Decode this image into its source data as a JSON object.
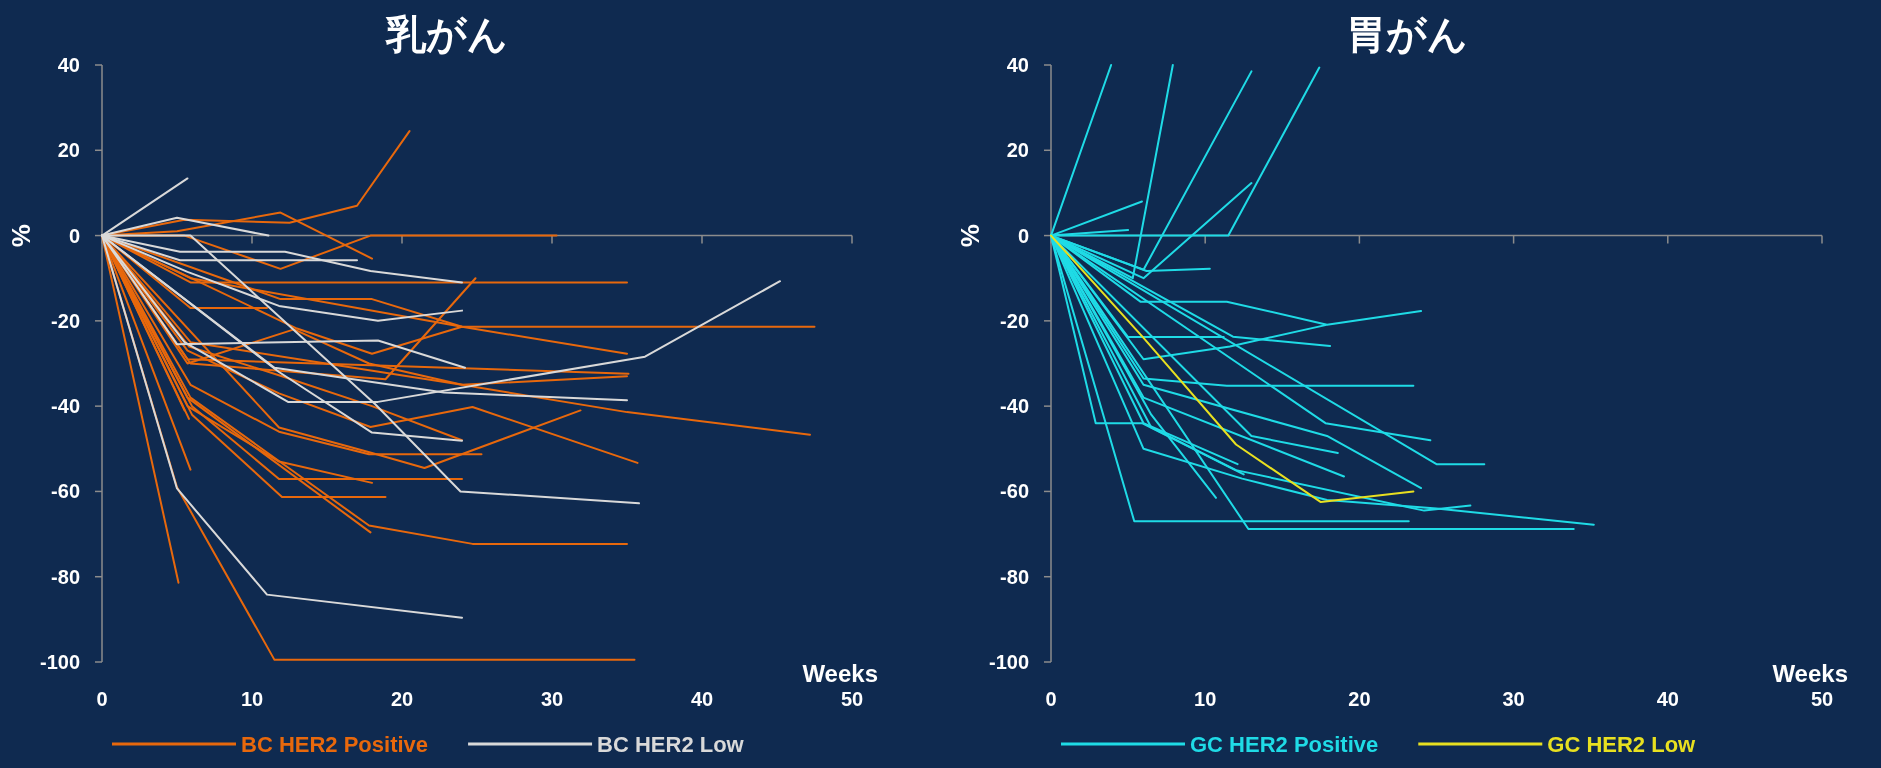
{
  "chart_data": [
    {
      "type": "line",
      "title": "乳がん",
      "xlabel": "Weeks",
      "ylabel": "%",
      "xlim": [
        0,
        50
      ],
      "xticks": [
        0,
        10,
        20,
        30,
        40,
        50
      ],
      "ylim": [
        -100,
        40
      ],
      "yticks": [
        -100,
        -80,
        -60,
        -40,
        -20,
        0,
        20,
        40
      ],
      "legend": "bottom",
      "marker": "none",
      "line_style": "solid",
      "series": [
        {
          "name": "BC HER2 Positive",
          "color": "#e8680c",
          "x": [
            0,
            5,
            11.9,
            18
          ],
          "values": [
            0,
            1,
            5.4,
            -5.4
          ]
        },
        {
          "color": "#e8680c",
          "x": [
            0,
            5.5,
            12.5,
            17,
            20.5
          ],
          "values": [
            0,
            3.7,
            3,
            7,
            24.5
          ]
        },
        {
          "color": "#e8680c",
          "x": [
            0,
            5.5,
            11.9,
            17.9,
            30.3
          ],
          "values": [
            0,
            0,
            -7.8,
            0,
            0
          ]
        },
        {
          "color": "#e8680c",
          "x": [
            0,
            5.9,
            35
          ],
          "values": [
            0,
            -11,
            -11
          ]
        },
        {
          "color": "#e8680c",
          "x": [
            0,
            11.9,
            18,
            24,
            35
          ],
          "values": [
            0,
            -14.9,
            -14.9,
            -21.4,
            -27.7
          ]
        },
        {
          "color": "#e8680c",
          "x": [
            0,
            5.9,
            24,
            47.5
          ],
          "values": [
            0,
            -10,
            -21.4,
            -21.4
          ]
        },
        {
          "color": "#e8680c",
          "x": [
            0,
            5.9,
            11
          ],
          "values": [
            0,
            -17,
            -17
          ]
        },
        {
          "color": "#e8680c",
          "x": [
            0,
            5.9,
            18.9,
            24.9
          ],
          "values": [
            0,
            -30,
            -33.7,
            -10
          ]
        },
        {
          "color": "#e8680c",
          "x": [
            0,
            13,
            18,
            24
          ],
          "values": [
            0,
            -21.8,
            -27.7,
            -21.4
          ]
        },
        {
          "color": "#e8680c",
          "x": [
            0,
            5.7,
            35.1
          ],
          "values": [
            0,
            -29,
            -32.4
          ]
        },
        {
          "color": "#e8680c",
          "x": [
            0,
            5.9,
            24,
            35,
            47.2
          ],
          "values": [
            0,
            -25,
            -35,
            -41.4,
            -46.7
          ]
        },
        {
          "color": "#e8680c",
          "x": [
            0,
            5.7,
            11.8,
            17.9,
            24.7,
            35.7
          ],
          "values": [
            0,
            -27,
            -37,
            -44.9,
            -40.2,
            -53.3
          ]
        },
        {
          "color": "#e8680c",
          "x": [
            0,
            11.8,
            18,
            21.5,
            31.9
          ],
          "values": [
            0,
            -45,
            -51,
            -54.5,
            -41
          ]
        },
        {
          "color": "#e8680c",
          "x": [
            0,
            5.9,
            11.8,
            17.8,
            25.3
          ],
          "values": [
            0,
            -35,
            -46,
            -51.3,
            -51.3
          ]
        },
        {
          "color": "#e8680c",
          "x": [
            0,
            6,
            11.8,
            24
          ],
          "values": [
            0,
            -40,
            -57.1,
            -57.1
          ]
        },
        {
          "color": "#e8680c",
          "x": [
            0,
            6,
            12,
            18.9
          ],
          "values": [
            0,
            -42,
            -61.3,
            -61.3
          ]
        },
        {
          "color": "#e8680c",
          "x": [
            0,
            5.9,
            17.8,
            24.7,
            35
          ],
          "values": [
            0,
            -38,
            -68,
            -72.3,
            -72.3
          ]
        },
        {
          "color": "#e8680c",
          "x": [
            0,
            5,
            11.5,
            35.5
          ],
          "values": [
            0,
            -59,
            -99.5,
            -99.5
          ]
        },
        {
          "color": "#e8680c",
          "x": [
            0,
            5.1
          ],
          "values": [
            0,
            -81.4
          ]
        },
        {
          "color": "#e8680c",
          "x": [
            0,
            5.9
          ],
          "values": [
            0,
            -54.9
          ]
        },
        {
          "color": "#e8680c",
          "x": [
            0,
            5.8
          ],
          "values": [
            0,
            -43
          ]
        },
        {
          "color": "#e8680c",
          "x": [
            0,
            5.5
          ],
          "values": [
            0,
            -41
          ]
        },
        {
          "color": "#e8680c",
          "x": [
            0,
            5.7,
            17.9
          ],
          "values": [
            0,
            -38,
            -69.6
          ]
        },
        {
          "color": "#e8680c",
          "x": [
            0,
            5.7,
            11.8,
            18
          ],
          "values": [
            0,
            -40,
            -53,
            -58
          ]
        },
        {
          "color": "#e8680c",
          "x": [
            0,
            5.7,
            12.8,
            17.8,
            24,
            35
          ],
          "values": [
            0,
            -30,
            -22,
            -30,
            -35,
            -33
          ]
        },
        {
          "color": "#e8680c",
          "x": [
            0,
            5.8,
            12,
            18,
            24
          ],
          "values": [
            0,
            -26,
            -33,
            -40,
            -48
          ]
        },
        {
          "name": "BC HER2 Low",
          "color": "#d9d9d9",
          "x": [
            0,
            5.7
          ],
          "values": [
            0,
            13.4
          ]
        },
        {
          "color": "#d9d9d9",
          "x": [
            0,
            5,
            11.1
          ],
          "values": [
            0,
            4.2,
            0
          ]
        },
        {
          "color": "#d9d9d9",
          "x": [
            0,
            5.2,
            12.2,
            17.9,
            24
          ],
          "values": [
            0,
            -3.8,
            -3.8,
            -8.3,
            -11
          ]
        },
        {
          "color": "#d9d9d9",
          "x": [
            0,
            5.2,
            17
          ],
          "values": [
            0,
            -5.8,
            -5.8
          ]
        },
        {
          "color": "#d9d9d9",
          "x": [
            0,
            5.7,
            11.8,
            18.4,
            24
          ],
          "values": [
            0,
            -8.5,
            -16.5,
            -20,
            -17.6
          ]
        },
        {
          "color": "#d9d9d9",
          "x": [
            0,
            5.9,
            18.2,
            23.9,
            35.8
          ],
          "values": [
            0,
            0,
            -39.5,
            -60,
            -62.8
          ]
        },
        {
          "color": "#d9d9d9",
          "x": [
            0,
            5,
            18.4,
            24.2
          ],
          "values": [
            0,
            -25.5,
            -24.6,
            -31
          ]
        },
        {
          "color": "#d9d9d9",
          "x": [
            0,
            5.5,
            12.4,
            18.4,
            36.2,
            45.2
          ],
          "values": [
            0,
            -25,
            -39,
            -39,
            -28.4,
            -10.7
          ]
        },
        {
          "color": "#d9d9d9",
          "x": [
            0,
            11.5,
            22.8,
            35
          ],
          "values": [
            0,
            -31,
            -36.8,
            -38.6
          ]
        },
        {
          "color": "#d9d9d9",
          "x": [
            0,
            11.8,
            18,
            24
          ],
          "values": [
            0,
            -32,
            -46.2,
            -48.1
          ]
        },
        {
          "color": "#d9d9d9",
          "x": [
            0,
            5,
            11,
            24
          ],
          "values": [
            0,
            -59.3,
            -84.2,
            -89.6
          ]
        }
      ]
    },
    {
      "type": "line",
      "title": "胃がん",
      "xlabel": "Weeks",
      "ylabel": "%",
      "xlim": [
        0,
        50
      ],
      "xticks": [
        0,
        10,
        20,
        30,
        40,
        50
      ],
      "ylim": [
        -100,
        40
      ],
      "yticks": [
        -100,
        -80,
        -60,
        -40,
        -20,
        0,
        20,
        40
      ],
      "legend": "bottom",
      "marker": "none",
      "line_style": "solid",
      "series": [
        {
          "name": "GC HER2 Positive",
          "color": "#1fdbe6",
          "x": [
            0,
            3.9
          ],
          "values": [
            0,
            40
          ]
        },
        {
          "color": "#1fdbe6",
          "x": [
            0,
            5.3,
            7.9
          ],
          "values": [
            0,
            -10,
            40
          ]
        },
        {
          "color": "#1fdbe6",
          "x": [
            0,
            6,
            13
          ],
          "values": [
            0,
            -8,
            38.5
          ]
        },
        {
          "color": "#1fdbe6",
          "x": [
            0,
            11.5,
            17.4
          ],
          "values": [
            0,
            0,
            39.4
          ]
        },
        {
          "color": "#1fdbe6",
          "x": [
            0,
            5.9
          ],
          "values": [
            0,
            8
          ]
        },
        {
          "color": "#1fdbe6",
          "x": [
            0,
            5
          ],
          "values": [
            0,
            1.3
          ]
        },
        {
          "color": "#1fdbe6",
          "x": [
            0,
            6.2,
            10.3
          ],
          "values": [
            0,
            -8.3,
            -7.8
          ]
        },
        {
          "color": "#1fdbe6",
          "x": [
            0,
            6,
            13
          ],
          "values": [
            0,
            -10,
            12.3
          ]
        },
        {
          "color": "#1fdbe6",
          "x": [
            0,
            5.8,
            11.4,
            17.9,
            24
          ],
          "values": [
            0,
            -15.5,
            -15.5,
            -20.9,
            -17.7
          ]
        },
        {
          "color": "#1fdbe6",
          "x": [
            0,
            11.8,
            18.1
          ],
          "values": [
            0,
            -23.7,
            -25.9
          ]
        },
        {
          "color": "#1fdbe6",
          "x": [
            0,
            5,
            11.2
          ],
          "values": [
            0,
            -23.8,
            -23.8
          ]
        },
        {
          "color": "#1fdbe6",
          "x": [
            0,
            6,
            11.6,
            17.8
          ],
          "values": [
            0,
            -29,
            -26,
            -21
          ]
        },
        {
          "color": "#1fdbe6",
          "x": [
            0,
            6,
            11.4,
            23.5
          ],
          "values": [
            0,
            -33.5,
            -35.2,
            -35.2
          ]
        },
        {
          "color": "#1fdbe6",
          "x": [
            0,
            2.9,
            5.9,
            12.5
          ],
          "values": [
            0,
            -44,
            -44,
            -56
          ]
        },
        {
          "color": "#1fdbe6",
          "x": [
            0,
            5.4,
            23.2
          ],
          "values": [
            0,
            -67,
            -67
          ]
        },
        {
          "color": "#1fdbe6",
          "x": [
            0,
            12.8,
            33.9
          ],
          "values": [
            0,
            -68.8,
            -68.8
          ]
        },
        {
          "color": "#1fdbe6",
          "x": [
            0,
            6,
            12.4,
            17.9,
            25,
            35.2
          ],
          "values": [
            0,
            -50,
            -57,
            -62,
            -64,
            -67.8
          ]
        },
        {
          "color": "#1fdbe6",
          "x": [
            0,
            6.5,
            12,
            24.2,
            27.2
          ],
          "values": [
            0,
            -45,
            -55,
            -64.5,
            -63.3
          ]
        },
        {
          "color": "#1fdbe6",
          "x": [
            0,
            17.8,
            24.6
          ],
          "values": [
            0,
            -44,
            -48
          ]
        },
        {
          "color": "#1fdbe6",
          "x": [
            0,
            25,
            28.1
          ],
          "values": [
            0,
            -53.6,
            -53.6
          ]
        },
        {
          "color": "#1fdbe6",
          "x": [
            0,
            6,
            17.9,
            24
          ],
          "values": [
            0,
            -35,
            -47,
            -59.2
          ]
        },
        {
          "color": "#1fdbe6",
          "x": [
            0,
            6,
            19
          ],
          "values": [
            0,
            -38,
            -56.5
          ]
        },
        {
          "color": "#1fdbe6",
          "x": [
            0,
            6,
            12.1
          ],
          "values": [
            0,
            -44,
            -53.6
          ]
        },
        {
          "color": "#1fdbe6",
          "x": [
            0,
            13,
            18.6
          ],
          "values": [
            0,
            -47,
            -51
          ]
        },
        {
          "color": "#1fdbe6",
          "x": [
            0,
            6.5,
            10.7
          ],
          "values": [
            0,
            -42,
            -61.5
          ]
        },
        {
          "name": "GC HER2 Low",
          "color": "#e8e020",
          "x": [
            0,
            6,
            12,
            17.5,
            23.5
          ],
          "values": [
            0,
            -24,
            -49,
            -62.5,
            -60
          ]
        }
      ]
    }
  ]
}
